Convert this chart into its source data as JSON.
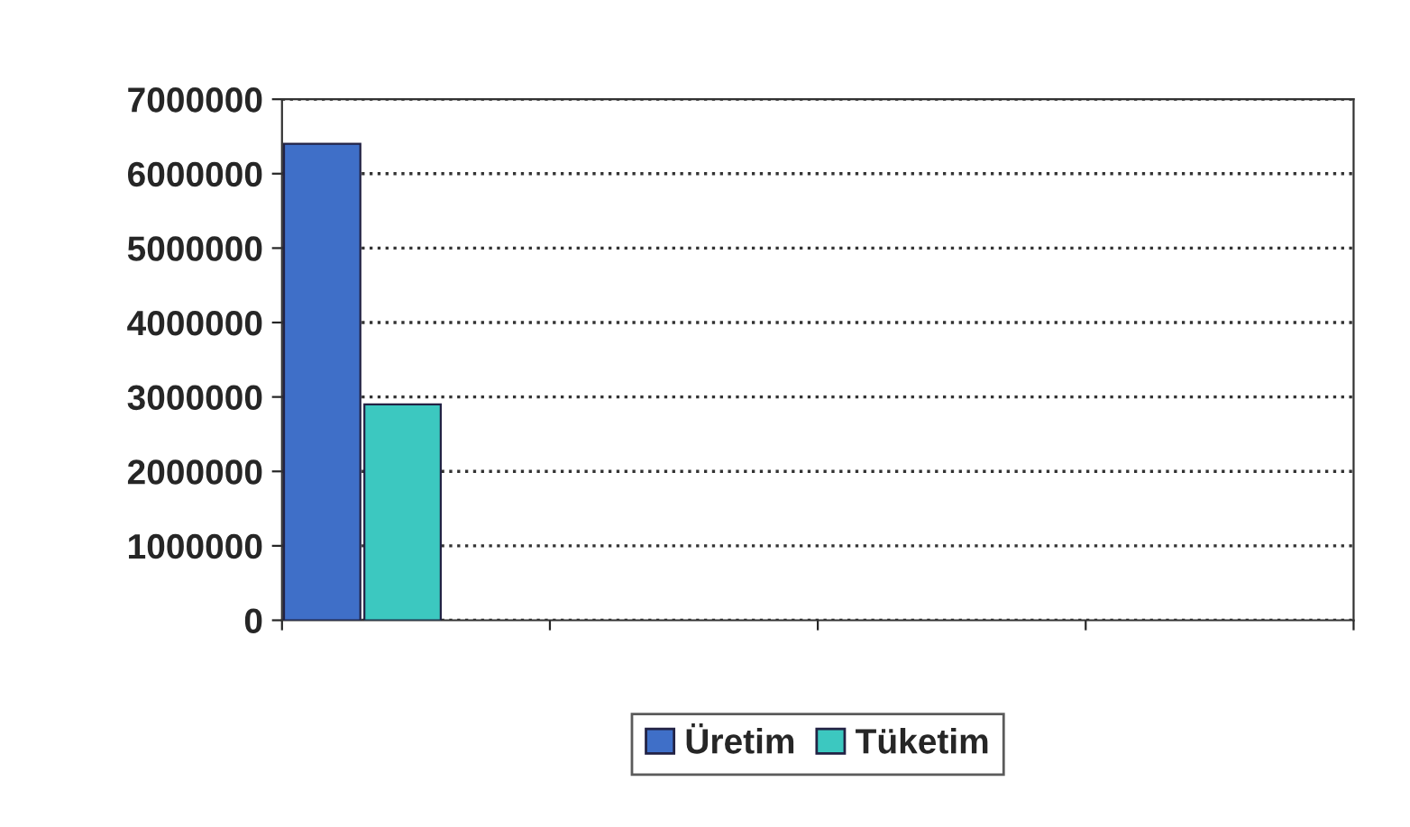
{
  "chart_data": {
    "type": "bar",
    "categories": [
      null,
      null,
      null,
      null
    ],
    "series": [
      {
        "name": "Üretim",
        "color": "#3f6fc8",
        "values": [
          6400000,
          null,
          null,
          null
        ]
      },
      {
        "name": "Tüketim",
        "color": "#3cc8c0",
        "values": [
          2900000,
          null,
          null,
          null
        ]
      }
    ],
    "ylim": [
      0,
      7000000
    ],
    "yticks": [
      0,
      1000000,
      2000000,
      3000000,
      4000000,
      5000000,
      6000000,
      7000000
    ],
    "grid": "y",
    "line_style": "dotted",
    "legend": "bottom"
  }
}
